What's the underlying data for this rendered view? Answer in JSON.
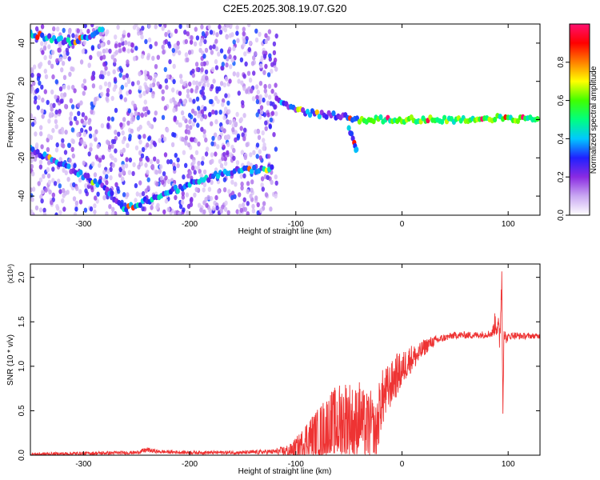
{
  "figure_title": "C2E5.2025.308.19.07.G20",
  "chart_data": [
    {
      "type": "heatmap",
      "title": "C2E5.2025.308.19.07.G20",
      "xlabel": "Height of straight line (km)",
      "ylabel": "Frequency (Hz)",
      "xlim": [
        -350,
        130
      ],
      "ylim": [
        -50,
        50
      ],
      "x_ticks": [
        -300,
        -200,
        -100,
        0,
        100
      ],
      "y_ticks": [
        -40,
        -20,
        0,
        20,
        40
      ],
      "colorbar": {
        "label": "Normalized spectral amplitude",
        "range": [
          0.0,
          1.0
        ],
        "ticks": [
          0.0,
          0.2,
          0.4,
          0.6,
          0.8
        ],
        "colors": [
          "#ffffff",
          "#c9a8f2",
          "#8a2be2",
          "#2020ff",
          "#00c8ff",
          "#00ff80",
          "#40ff00",
          "#ffff00",
          "#ff8000",
          "#ff0000",
          "#ff1070"
        ]
      },
      "noise_region_x": [
        -350,
        -118
      ],
      "traces": [
        {
          "points": [
            [
              -350,
              45
            ],
            [
              -310,
              40
            ],
            [
              -280,
              48
            ]
          ],
          "amplitude": 0.35
        },
        {
          "points": [
            [
              -350,
              -15
            ],
            [
              -280,
              -35
            ],
            [
              -262,
              -47
            ]
          ],
          "amplitude": 0.3
        },
        {
          "points": [
            [
              -262,
              -47
            ],
            [
              -220,
              -38
            ],
            [
              -180,
              -30
            ],
            [
              -160,
              -27
            ],
            [
              -130,
              -26
            ],
            [
              -120,
              -26
            ]
          ],
          "amplitude": 0.35
        },
        {
          "points": [
            [
              -118,
              10
            ],
            [
              -100,
              5
            ],
            [
              -80,
              3
            ],
            [
              -60,
              2
            ],
            [
              -40,
              0
            ]
          ],
          "amplitude": 0.3
        },
        {
          "points": [
            [
              -40,
              0
            ],
            [
              0,
              0
            ],
            [
              40,
              0
            ],
            [
              80,
              0
            ],
            [
              90,
              1
            ],
            [
              100,
              0
            ],
            [
              130,
              1
            ]
          ],
          "amplitude": 0.55
        },
        {
          "points": [
            [
              -50,
              -5
            ],
            [
              -45,
              -12
            ],
            [
              -42,
              -18
            ]
          ],
          "amplitude": 0.35
        }
      ]
    },
    {
      "type": "line",
      "xlabel": "Height of straight line (km)",
      "ylabel": "SNR (10 * v/v)",
      "y_multiplier": "(x10⁴)",
      "xlim": [
        -350,
        130
      ],
      "ylim": [
        0,
        2.15
      ],
      "x_ticks": [
        -300,
        -200,
        -100,
        0,
        100
      ],
      "y_ticks": [
        0.0,
        0.5,
        1.0,
        1.5,
        2.0
      ],
      "color": "#ee3333",
      "series": [
        {
          "x": [
            -350,
            -300,
            -250,
            -240,
            -230,
            -200,
            -150,
            -120,
            -105,
            -95,
            -90,
            -80,
            -70,
            -60,
            -55,
            -50,
            -45,
            -40,
            -35,
            -30,
            -25,
            -20,
            -15,
            -10,
            -5,
            0,
            5,
            10,
            15,
            20,
            25,
            30,
            35,
            40,
            50,
            60,
            70,
            80,
            85,
            88,
            90,
            92,
            94,
            95,
            96,
            98,
            100,
            105,
            110,
            120,
            130
          ],
          "y": [
            0.01,
            0.02,
            0.03,
            0.06,
            0.04,
            0.03,
            0.03,
            0.04,
            0.05,
            0.12,
            0.18,
            0.22,
            0.3,
            0.35,
            0.38,
            0.42,
            0.3,
            0.45,
            0.3,
            0.35,
            0.2,
            0.6,
            0.7,
            0.8,
            0.9,
            0.95,
            1.05,
            1.1,
            1.12,
            1.2,
            1.25,
            1.28,
            1.3,
            1.32,
            1.35,
            1.35,
            1.35,
            1.36,
            1.37,
            1.5,
            1.45,
            1.3,
            2.0,
            0.6,
            1.4,
            1.3,
            1.33,
            1.35,
            1.34,
            1.34,
            1.34
          ],
          "spread": [
            0.02,
            0.02,
            0.02,
            0.03,
            0.02,
            0.02,
            0.02,
            0.03,
            0.08,
            0.15,
            0.22,
            0.3,
            0.4,
            0.45,
            0.5,
            0.45,
            0.45,
            0.4,
            0.4,
            0.4,
            0.35,
            0.35,
            0.3,
            0.25,
            0.25,
            0.2,
            0.18,
            0.15,
            0.12,
            0.1,
            0.08,
            0.06,
            0.05,
            0.04,
            0.04,
            0.04,
            0.04,
            0.04,
            0.05,
            0.15,
            0.15,
            0.2,
            0.2,
            0.3,
            0.1,
            0.05,
            0.04,
            0.04,
            0.04,
            0.03,
            0.03
          ]
        }
      ]
    }
  ]
}
